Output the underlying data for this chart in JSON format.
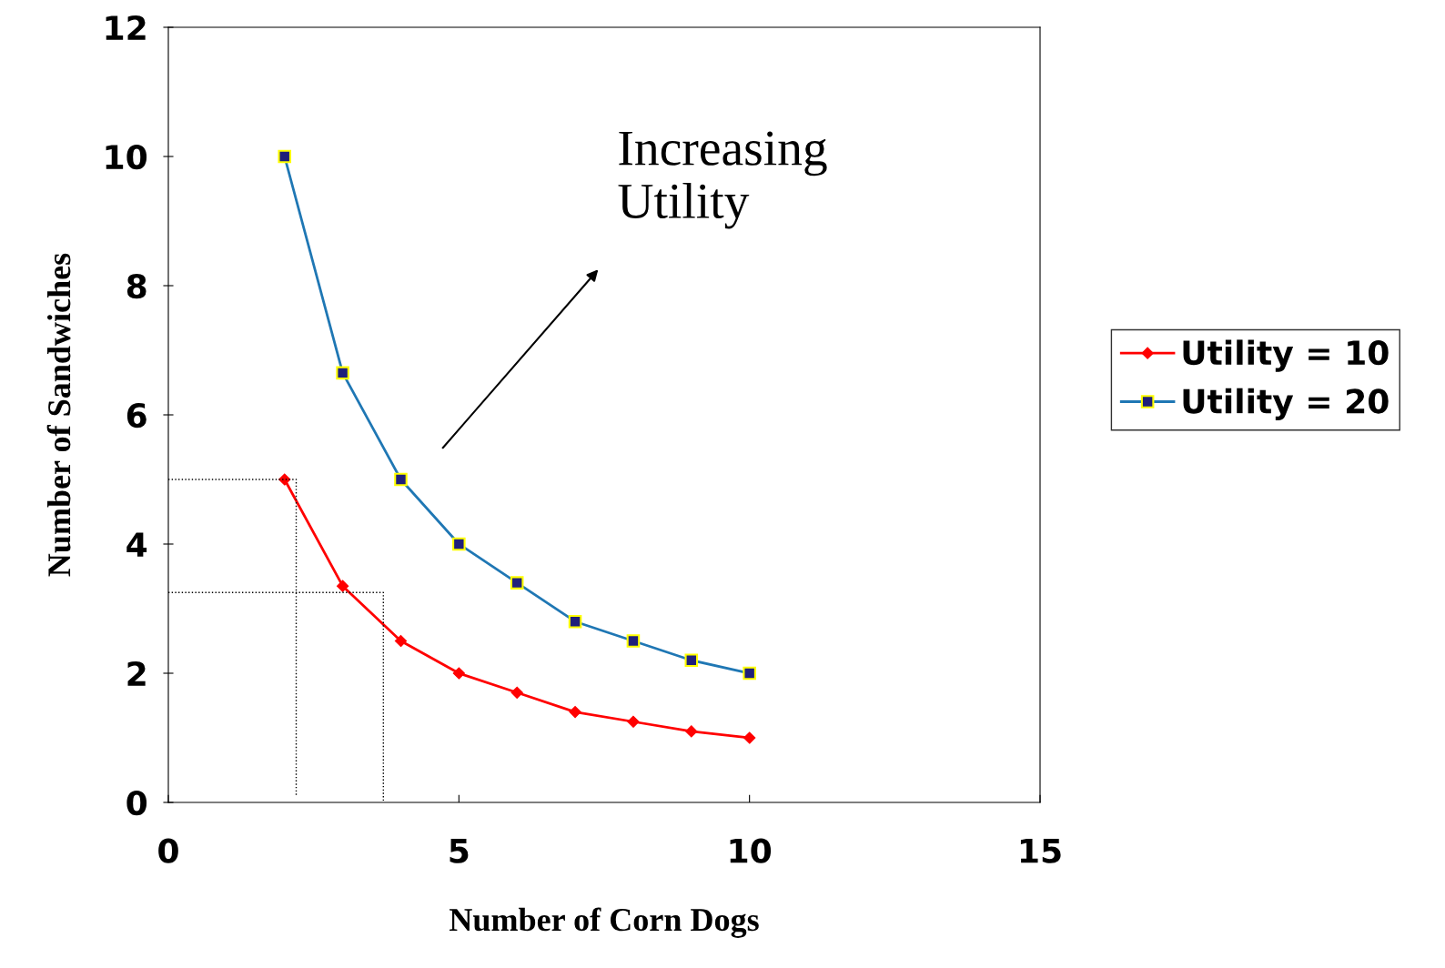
{
  "chart_data": {
    "type": "line",
    "xlabel": "Number of Corn Dogs",
    "ylabel": "Number of Sandwiches",
    "xlim": [
      0,
      15
    ],
    "xticks": [
      0,
      5,
      10,
      15
    ],
    "ylim": [
      0,
      12
    ],
    "yticks": [
      0,
      2,
      4,
      6,
      8,
      10,
      12
    ],
    "grid": false,
    "legend": "right",
    "annotations": [
      "Increasing\nUtility"
    ],
    "series": [
      {
        "name": "Utility = 10",
        "color": "#ff0000",
        "marker": "diamond",
        "x": [
          2,
          3,
          4,
          5,
          6,
          7,
          8,
          9,
          10
        ],
        "values": [
          5,
          3.35,
          2.5,
          2,
          1.7,
          1.4,
          1.25,
          1.1,
          1
        ]
      },
      {
        "name": "Utility = 20",
        "color": "#1f77b4",
        "marker": "square",
        "x": [
          2,
          3,
          4,
          5,
          6,
          7,
          8,
          9,
          10
        ],
        "values": [
          10,
          6.65,
          5,
          4,
          3.4,
          2.8,
          2.5,
          2.2,
          2
        ]
      },
      {
        "color": "#000000",
        "marker": "none",
        "line_style": "dotted",
        "x": [
          0,
          2.2,
          2.2
        ],
        "values": [
          5,
          5,
          0.1
        ]
      },
      {
        "color": "#000000",
        "marker": "none",
        "line_style": "dotted",
        "x": [
          0,
          3.7,
          3.7
        ],
        "values": [
          3.25,
          3.25,
          0
        ]
      }
    ]
  }
}
